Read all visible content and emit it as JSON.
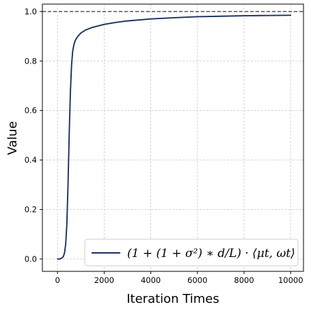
{
  "chart_data": {
    "type": "line",
    "xlabel": "Iteration Times",
    "ylabel": "Value",
    "xlim": [
      -650,
      10550
    ],
    "ylim": [
      -0.05,
      1.03
    ],
    "x_ticks": [
      0,
      2000,
      4000,
      6000,
      8000,
      10000
    ],
    "y_ticks": [
      0.0,
      0.2,
      0.4,
      0.6,
      0.8,
      1.0
    ],
    "x_tick_labels": [
      "0",
      "2000",
      "4000",
      "6000",
      "8000",
      "10000"
    ],
    "y_tick_labels": [
      "0.0",
      "0.2",
      "0.4",
      "0.6",
      "0.8",
      "1.0"
    ],
    "grid": true,
    "legend_position": "bottom-right",
    "reference_line": {
      "y": 1.0,
      "style": "dashed",
      "color": "#000000"
    },
    "series": [
      {
        "name": "(1 + (1 + σ²) ∗ d/L) · ⟨μt, ωt⟩",
        "color": "#1b2f5e",
        "x": [
          0,
          100,
          200,
          250,
          300,
          350,
          400,
          450,
          500,
          550,
          600,
          650,
          700,
          750,
          800,
          900,
          1000,
          1200,
          1500,
          2000,
          2500,
          3000,
          4000,
          5000,
          6000,
          7000,
          8000,
          9000,
          10000
        ],
        "y": [
          0.0,
          0.0,
          0.005,
          0.01,
          0.025,
          0.06,
          0.14,
          0.3,
          0.5,
          0.67,
          0.78,
          0.84,
          0.865,
          0.88,
          0.89,
          0.903,
          0.913,
          0.925,
          0.936,
          0.948,
          0.956,
          0.962,
          0.97,
          0.975,
          0.979,
          0.981,
          0.983,
          0.984,
          0.985
        ]
      }
    ]
  }
}
